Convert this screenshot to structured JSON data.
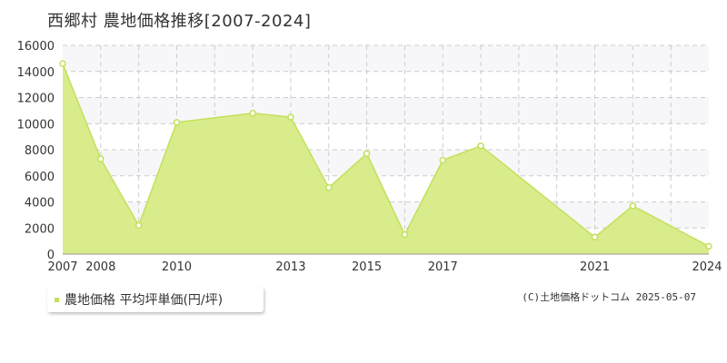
{
  "title": "西郷村 農地価格推移[2007-2024]",
  "colors": {
    "fill": "#d9ec8c",
    "line": "#c2e05a",
    "marker_fill": "#ffffff",
    "grid": "#cccccc",
    "band": "#f7f7f9",
    "axis": "#999999"
  },
  "legend": {
    "label": "農地価格 平均坪単価(円/坪)"
  },
  "credit": "(C)土地価格ドットコム 2025-05-07",
  "chart_data": {
    "type": "area",
    "title": "西郷村 農地価格推移[2007-2024]",
    "xlim": [
      2007,
      2024
    ],
    "ylim": [
      0,
      16000
    ],
    "x_ticks": [
      2007,
      2008,
      2010,
      2013,
      2015,
      2017,
      2021,
      2024
    ],
    "x_grid": [
      2008,
      2009,
      2010,
      2011,
      2012,
      2013,
      2014,
      2015,
      2016,
      2017,
      2018,
      2019,
      2020,
      2021,
      2022,
      2023
    ],
    "y_ticks": [
      0,
      2000,
      4000,
      6000,
      8000,
      10000,
      12000,
      14000,
      16000
    ],
    "grid": true,
    "legend_position": "bottom-left",
    "series": [
      {
        "name": "農地価格 平均坪単価(円/坪)",
        "x": [
          2007,
          2008,
          2009,
          2010,
          2012,
          2013,
          2014,
          2015,
          2016,
          2017,
          2018,
          2021,
          2022,
          2024
        ],
        "values": [
          14600,
          7300,
          2200,
          10100,
          10800,
          10500,
          5100,
          7700,
          1500,
          7200,
          8300,
          1300,
          3700,
          600
        ]
      }
    ]
  }
}
